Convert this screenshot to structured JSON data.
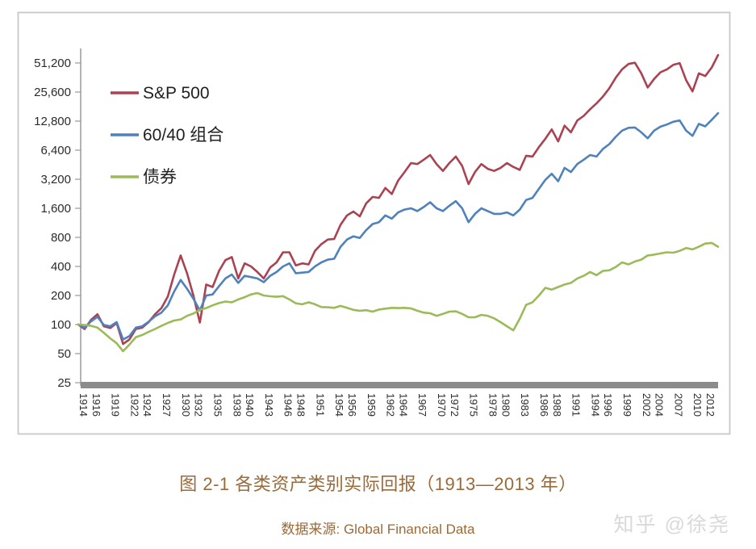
{
  "caption": {
    "title": "图 2-1 各类资产类别实际回报（1913—2013 年）",
    "source": "数据来源: Global Financial Data"
  },
  "watermark": {
    "text": "知乎 @徐尧"
  },
  "colors": {
    "caption_text": "#9a6a38",
    "watermark_text": "#d9d9d9",
    "frame_border": "#c8c8c8",
    "axis_line": "#9a9a9a",
    "axis_bar": "#8c8c8c",
    "tick_text": "#2b2b2b",
    "legend_text": "#1f1f1f",
    "sp500": "#ab4252",
    "portfolio6040": "#4f81bd",
    "bonds": "#9bbb59"
  },
  "chart_data": {
    "type": "line",
    "title": "图 2-1 各类资产类别实际回报（1913—2013 年）",
    "source": "数据来源: Global Financial Data",
    "grid": false,
    "legend_position": "top-left",
    "x_axis": {
      "min": 1913,
      "max": 2013,
      "tick_labels": [
        "1914",
        "1916",
        "1919",
        "1922",
        "1924",
        "1927",
        "1930",
        "1932",
        "1935",
        "1938",
        "1940",
        "1943",
        "1946",
        "1948",
        "1951",
        "1954",
        "1956",
        "1959",
        "1962",
        "1964",
        "1967",
        "1970",
        "1972",
        "1975",
        "1978",
        "1980",
        "1983",
        "1986",
        "1988",
        "1991",
        "1994",
        "1996",
        "1999",
        "2002",
        "2004",
        "2007",
        "2010",
        "2012"
      ]
    },
    "y_axis": {
      "scale": "log2",
      "min": 25,
      "max": 51200,
      "tick_values": [
        51200,
        25600,
        12800,
        6400,
        3200,
        1600,
        800,
        400,
        200,
        100,
        50,
        25
      ],
      "tick_labels": [
        "51,200",
        "25,600",
        "12,800",
        "6,400",
        "3,200",
        "1,600",
        "800",
        "400",
        "200",
        "100",
        "50",
        "25"
      ]
    },
    "years": [
      1913,
      1914,
      1915,
      1916,
      1917,
      1918,
      1919,
      1920,
      1921,
      1922,
      1923,
      1924,
      1925,
      1926,
      1927,
      1928,
      1929,
      1930,
      1931,
      1932,
      1933,
      1934,
      1935,
      1936,
      1937,
      1938,
      1939,
      1940,
      1941,
      1942,
      1943,
      1944,
      1945,
      1946,
      1947,
      1948,
      1949,
      1950,
      1951,
      1952,
      1953,
      1954,
      1955,
      1956,
      1957,
      1958,
      1959,
      1960,
      1961,
      1962,
      1963,
      1964,
      1965,
      1966,
      1967,
      1968,
      1969,
      1970,
      1971,
      1972,
      1973,
      1974,
      1975,
      1976,
      1977,
      1978,
      1979,
      1980,
      1981,
      1982,
      1983,
      1984,
      1985,
      1986,
      1987,
      1988,
      1989,
      1990,
      1991,
      1992,
      1993,
      1994,
      1995,
      1996,
      1997,
      1998,
      1999,
      2000,
      2001,
      2002,
      2003,
      2004,
      2005,
      2006,
      2007,
      2008,
      2009,
      2010,
      2011,
      2012,
      2013
    ],
    "series": [
      {
        "id": "sp500",
        "name": "S&P 500",
        "color": "#ab4252",
        "values": [
          100,
          90,
          112,
          128,
          96,
          92,
          104,
          63,
          70,
          90,
          93,
          106,
          128,
          148,
          195,
          330,
          520,
          340,
          200,
          105,
          260,
          245,
          360,
          465,
          500,
          300,
          430,
          400,
          350,
          300,
          390,
          440,
          560,
          560,
          410,
          430,
          420,
          580,
          680,
          760,
          770,
          1080,
          1350,
          1480,
          1320,
          1800,
          2100,
          2050,
          2600,
          2250,
          3100,
          3800,
          4700,
          4600,
          5100,
          5700,
          4600,
          3900,
          4700,
          5500,
          4400,
          2850,
          3800,
          4600,
          4100,
          3900,
          4200,
          4700,
          4300,
          4000,
          5600,
          5500,
          6900,
          8400,
          10500,
          7900,
          11500,
          9800,
          13000,
          14500,
          17000,
          19500,
          23000,
          28000,
          36000,
          44000,
          50000,
          51500,
          40000,
          28500,
          35000,
          41000,
          44000,
          49000,
          51000,
          34000,
          26000,
          40000,
          37500,
          46000,
          62000
        ]
      },
      {
        "id": "portfolio6040",
        "name": "60/40 组合",
        "color": "#4f81bd",
        "values": [
          100,
          93,
          108,
          120,
          99,
          96,
          106,
          70,
          76,
          93,
          96,
          107,
          122,
          133,
          158,
          220,
          290,
          235,
          185,
          140,
          200,
          205,
          250,
          300,
          330,
          270,
          320,
          310,
          300,
          275,
          320,
          350,
          400,
          430,
          340,
          345,
          350,
          400,
          440,
          470,
          480,
          640,
          760,
          820,
          790,
          950,
          1100,
          1150,
          1350,
          1250,
          1450,
          1550,
          1600,
          1500,
          1650,
          1850,
          1600,
          1500,
          1700,
          1900,
          1600,
          1150,
          1400,
          1600,
          1500,
          1400,
          1400,
          1450,
          1350,
          1550,
          1950,
          2050,
          2550,
          3150,
          3650,
          3050,
          4200,
          3800,
          4600,
          5100,
          5700,
          5500,
          6600,
          7400,
          8800,
          10200,
          10900,
          11000,
          9800,
          8500,
          10200,
          11200,
          11800,
          12600,
          13000,
          10200,
          9000,
          12000,
          11300,
          13200,
          15500
        ]
      },
      {
        "id": "bonds",
        "name": "债券",
        "color": "#9bbb59",
        "values": [
          100,
          99,
          97,
          93,
          82,
          72,
          64,
          53,
          62,
          74,
          78,
          84,
          90,
          97,
          104,
          110,
          113,
          123,
          130,
          142,
          148,
          158,
          167,
          173,
          170,
          182,
          192,
          205,
          212,
          200,
          196,
          194,
          197,
          182,
          166,
          162,
          170,
          162,
          152,
          151,
          149,
          156,
          149,
          142,
          139,
          141,
          136,
          143,
          146,
          149,
          148,
          149,
          147,
          139,
          133,
          131,
          123,
          129,
          136,
          137,
          129,
          119,
          119,
          126,
          123,
          116,
          106,
          96,
          87,
          115,
          160,
          170,
          200,
          240,
          230,
          245,
          260,
          270,
          300,
          320,
          350,
          325,
          360,
          365,
          395,
          440,
          420,
          450,
          470,
          520,
          530,
          545,
          560,
          555,
          580,
          620,
          600,
          640,
          690,
          700,
          640
        ]
      }
    ]
  }
}
